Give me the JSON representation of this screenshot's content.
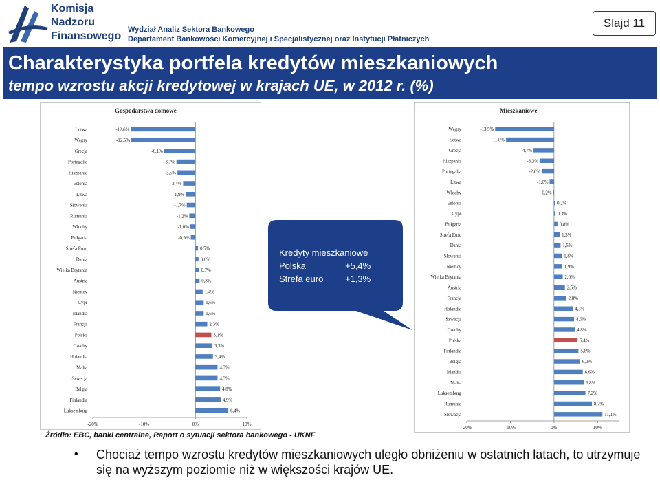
{
  "header": {
    "logo_lines": [
      "Komisja",
      "Nadzoru",
      "Finansowego"
    ],
    "dept_line1": "Wydział Analiz Sektora Bankowego",
    "dept_line2": "Departament Bankowości Komercyjnej i Specjalistycznej oraz Instytucji Płatniczych",
    "slide_label": "Slajd 11"
  },
  "title": {
    "main": "Charakterystyka portfela kredytów mieszkaniowych",
    "sub": "tempo wzrostu akcji kredytowej w krajach UE, w 2012 r. (%)"
  },
  "callout": {
    "heading": "Kredyty mieszkaniowe",
    "row1_label": "Polska",
    "row1_value": "+5,4%",
    "row2_label": "Strefa euro",
    "row2_value": "+1,3%"
  },
  "source": "Źródło: EBC, banki centralne, Raport o sytuacji sektora bankowego - UKNF",
  "bullet_text": "Chociaż tempo wzrostu kredytów mieszkaniowych uległo obniżeniu w ostatnich latach, to utrzymuje się na wyższym poziomie niż w większości krajów UE.",
  "colors": {
    "bar": "#4f7fbf",
    "highlight": "#c0504d",
    "title_bg": "#1d3f8a"
  },
  "chart_data": [
    {
      "type": "bar",
      "orientation": "horizontal",
      "title": "Gospodarstwa domowe",
      "xlim": [
        -20,
        10
      ],
      "ticks": [
        -20,
        -10,
        0,
        10
      ],
      "tick_labels": [
        "-20%",
        "-10%",
        "0%",
        "10%"
      ],
      "highlight": "Polska",
      "categories": [
        "Łotwa",
        "Węgry",
        "Grecja",
        "Portugalia",
        "Hiszpania",
        "Estonia",
        "Litwa",
        "Słowenia",
        "Rumunia",
        "Włochy",
        "Bułgaria",
        "Strefa Euro",
        "Dania",
        "Wielka Brytania",
        "Austria",
        "Niemcy",
        "Cypr",
        "Irlandia",
        "Francja",
        "Polska",
        "Czechy",
        "Holandia",
        "Malta",
        "Szwecja",
        "Belgia",
        "Finlandia",
        "Luksemburg"
      ],
      "values": [
        -12.6,
        -12.5,
        -6.1,
        -3.7,
        -3.5,
        -2.4,
        -1.9,
        -1.7,
        -1.2,
        -1.0,
        -0.9,
        0.5,
        0.6,
        0.7,
        0.8,
        1.4,
        1.6,
        1.6,
        2.3,
        3.1,
        3.3,
        3.4,
        4.3,
        4.3,
        4.8,
        4.9,
        6.4
      ],
      "labels": [
        "-12,6%",
        "-12,5%",
        "-6,1%",
        "-3,7%",
        "-3,5%",
        "-2,4%",
        "-1,9%",
        "-1,7%",
        "-1,2%",
        "-1,0%",
        "-0,9%",
        "0,5%",
        "0,6%",
        "0,7%",
        "0,8%",
        "1,4%",
        "1,6%",
        "1,6%",
        "2,3%",
        "3,1%",
        "3,3%",
        "3,4%",
        "4,3%",
        "4,3%",
        "4,8%",
        "4,9%",
        "6,4%"
      ]
    },
    {
      "type": "bar",
      "orientation": "horizontal",
      "title": "Mieszkaniowe",
      "xlim": [
        -20,
        15
      ],
      "ticks": [
        -20,
        -10,
        0,
        10
      ],
      "tick_labels": [
        "-20%",
        "-10%",
        "0%",
        "10%"
      ],
      "highlight": "Polska",
      "categories": [
        "Węgry",
        "Łotwa",
        "Grecja",
        "Hiszpania",
        "Portugalia",
        "Litwa",
        "Włochy",
        "Estonia",
        "Cypr",
        "Bułgaria",
        "Strefa Euro",
        "Dania",
        "Słowenia",
        "Niemcy",
        "Wielka Brytania",
        "Austria",
        "Francja",
        "Holandia",
        "Szwecja",
        "Czechy",
        "Polska",
        "Finlandia",
        "Belgia",
        "Irlandia",
        "Malta",
        "Luksemburg",
        "Rumunia",
        "Słowacja"
      ],
      "values": [
        -13.5,
        -11.0,
        -4.7,
        -3.3,
        -2.8,
        -1.0,
        -0.2,
        0.2,
        0.3,
        0.8,
        1.3,
        1.5,
        1.8,
        1.9,
        2.0,
        2.5,
        2.8,
        4.3,
        4.6,
        4.8,
        5.4,
        5.6,
        6.0,
        6.6,
        6.8,
        7.2,
        8.7,
        11.1
      ],
      "labels": [
        "-13,5%",
        "-11,0%",
        "-4,7%",
        "-3,3%",
        "-2,8%",
        "-1,0%",
        "-0,2%",
        "0,2%",
        "0,3%",
        "0,8%",
        "1,3%",
        "1,5%",
        "1,8%",
        "1,9%",
        "2,0%",
        "2,5%",
        "2,8%",
        "4,3%",
        "4,6%",
        "4,8%",
        "5,4%",
        "5,6%",
        "6,0%",
        "6,6%",
        "6,8%",
        "7,2%",
        "8,7%",
        "11,1%"
      ]
    }
  ]
}
